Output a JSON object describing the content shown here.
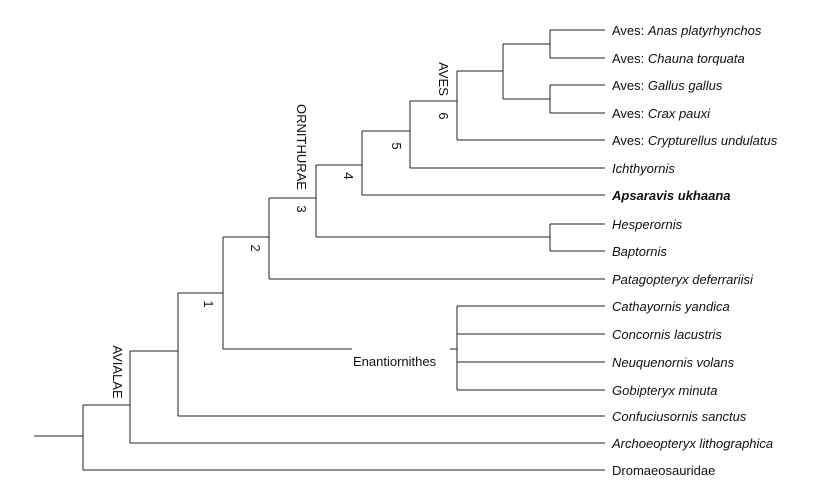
{
  "tree": {
    "leaves": [
      {
        "prefix": "Aves: ",
        "name": "Anas platyrhynchos",
        "style": "italic"
      },
      {
        "prefix": "Aves: ",
        "name": "Chauna torquata",
        "style": "italic"
      },
      {
        "prefix": "Aves: ",
        "name": "Gallus gallus",
        "style": "italic"
      },
      {
        "prefix": "Aves: ",
        "name": "Crax pauxi",
        "style": "italic"
      },
      {
        "prefix": "Aves: ",
        "name": "Crypturellus undulatus",
        "style": "italic"
      },
      {
        "prefix": "",
        "name": "Ichthyornis",
        "style": "italic"
      },
      {
        "prefix": "",
        "name": "Apsaravis ukhaana",
        "style": "bold"
      },
      {
        "prefix": "",
        "name": "Hesperornis",
        "style": "italic"
      },
      {
        "prefix": "",
        "name": "Baptornis",
        "style": "italic"
      },
      {
        "prefix": "",
        "name": "Patagopteryx deferrariisi",
        "style": "italic"
      },
      {
        "prefix": "",
        "name": "Cathayornis yandica",
        "style": "italic"
      },
      {
        "prefix": "",
        "name": "Concornis lacustris",
        "style": "italic"
      },
      {
        "prefix": "",
        "name": "Neuquenornis volans",
        "style": "italic"
      },
      {
        "prefix": "",
        "name": "Gobipteryx minuta",
        "style": "italic"
      },
      {
        "prefix": "",
        "name": "Confuciusornis sanctus",
        "style": "italic"
      },
      {
        "prefix": "",
        "name": "Archoeopteryx lithographica",
        "style": "italic"
      },
      {
        "prefix": "",
        "name": "Dromaeosauridae",
        "style": "plain"
      }
    ],
    "clade_labels": {
      "avialae": "AVIALAE",
      "ornithurae": "ORNITHURAE",
      "aves": "AVES",
      "enantiornithes": "Enantiornithes"
    },
    "node_numbers": {
      "n1": "1",
      "n2": "2",
      "n3": "3",
      "n4": "4",
      "n5": "5",
      "n6": "6"
    }
  }
}
